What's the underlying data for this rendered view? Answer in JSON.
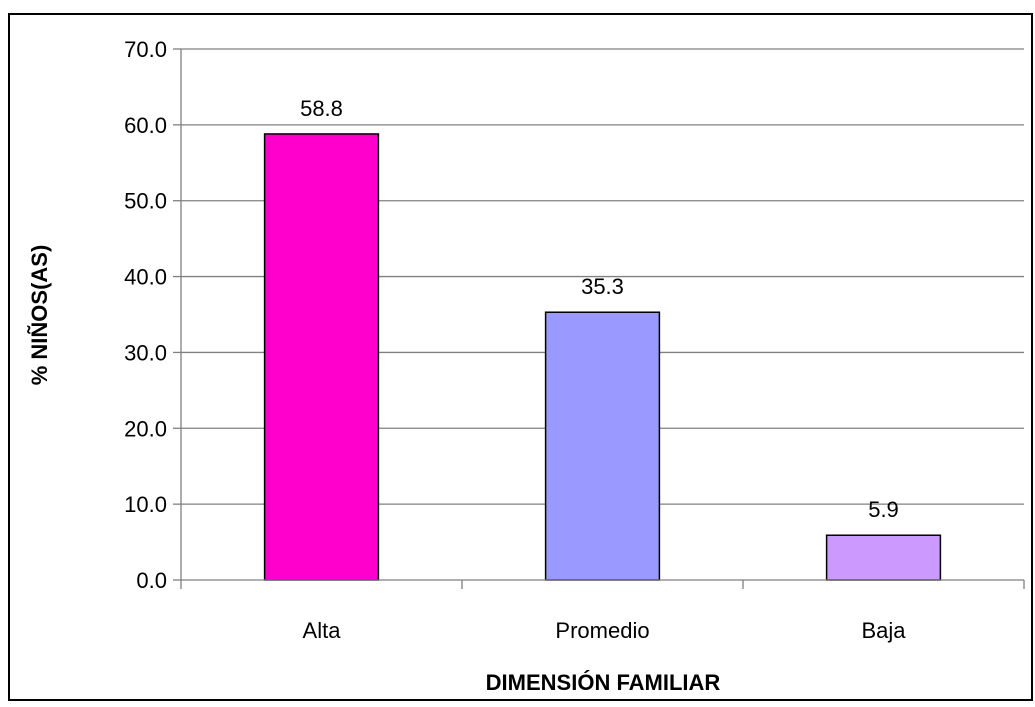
{
  "chart_data": {
    "type": "bar",
    "title": "",
    "xlabel": "DIMENSIÓN FAMILIAR",
    "ylabel": "% NIÑOS(AS)",
    "categories": [
      "Alta",
      "Promedio",
      "Baja"
    ],
    "values": [
      58.8,
      35.3,
      5.9
    ],
    "data_labels": [
      "58.8",
      "35.3",
      "5.9"
    ],
    "bar_colors": [
      "#ff00cc",
      "#9999ff",
      "#cc99ff"
    ],
    "ylim": [
      0,
      70
    ],
    "y_ticks": [
      0,
      10,
      20,
      30,
      40,
      50,
      60,
      70
    ],
    "y_tick_labels": [
      "0.0",
      "10.0",
      "20.0",
      "30.0",
      "40.0",
      "50.0",
      "60.0",
      "70.0"
    ],
    "grid": true,
    "legend": "none"
  }
}
